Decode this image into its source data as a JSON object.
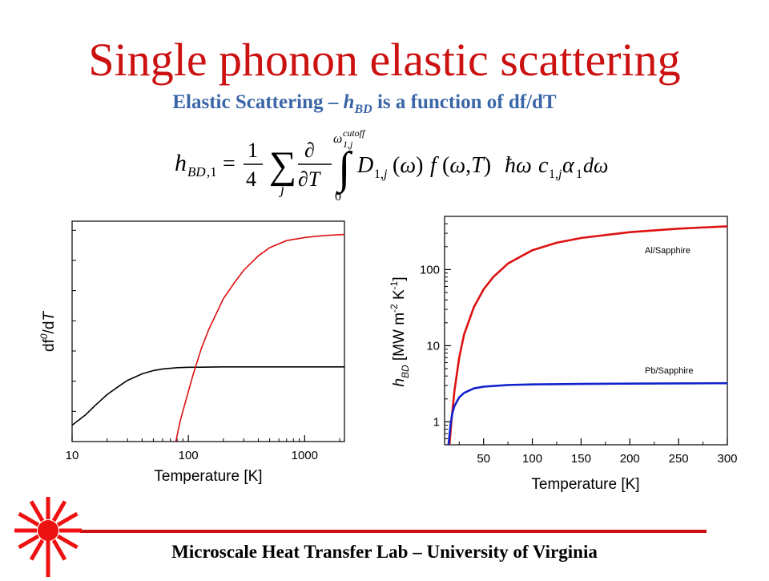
{
  "slide": {
    "title": "Single phonon elastic scattering",
    "subtitle_prefix": "Elastic Scattering – ",
    "subtitle_symbol": "h",
    "subtitle_symbol_sub": "BD",
    "subtitle_suffix": " is a function of df/dT",
    "footer": "Microscale Heat Transfer Lab – University of Virginia",
    "equation_latex": "h_{BD,1} = \\frac{1}{4} \\sum_j \\frac{\\partial}{\\partial T} \\int_0^{\\omega_{1,j}^{cutoff}} D_{1,j}(\\omega) f(\\omega,T) \\hbar\\omega c_{1,j} \\alpha_1 d\\omega"
  },
  "colors": {
    "title": "#cc1111",
    "subtitle": "#3a66a8",
    "red_series": "#dd1111",
    "blue_series": "#1122cc",
    "black_series": "#000000",
    "footer_rule": "#cc1111",
    "logo": "#ee1111"
  },
  "logo_icon": "laser-starburst-icon",
  "chart_data": [
    {
      "type": "line",
      "xlabel": "Temperature [K]",
      "ylabel": "df0/dT",
      "ylabel_parts": {
        "main": "df",
        "sup": "0",
        "rest": "/d",
        "var": "T"
      },
      "x_scale": "log",
      "xlim": [
        10,
        2200
      ],
      "x_ticks": [
        "10",
        "100",
        "1000"
      ],
      "y_tick_labels": "none",
      "grid": false,
      "legend": "none",
      "series": [
        {
          "color": "#000000",
          "x": [
            10,
            13,
            16,
            20,
            25,
            30,
            40,
            50,
            60,
            80,
            100,
            150,
            200,
            400,
            1000,
            2200
          ],
          "y": [
            0.08,
            0.13,
            0.18,
            0.23,
            0.27,
            0.3,
            0.332,
            0.348,
            0.356,
            0.362,
            0.364,
            0.365,
            0.366,
            0.366,
            0.366,
            0.366
          ]
        },
        {
          "color": "#dd1111",
          "x": [
            78,
            85,
            95,
            110,
            130,
            150,
            200,
            250,
            300,
            400,
            500,
            700,
            1000,
            1500,
            2200
          ],
          "y": [
            0.0,
            0.1,
            0.2,
            0.33,
            0.46,
            0.55,
            0.7,
            0.78,
            0.84,
            0.91,
            0.95,
            0.985,
            1.0,
            1.01,
            1.015
          ]
        }
      ]
    },
    {
      "type": "line",
      "xlabel": "Temperature [K]",
      "ylabel": "hBD [MW m-2 K-1]",
      "ylabel_parts": {
        "h": "h",
        "h_sub": "BD",
        "units_a": " [MW m",
        "exp1": "-2",
        "units_b": " K",
        "exp2": "-1",
        "units_c": "]"
      },
      "x_scale": "linear",
      "xlim": [
        10,
        300
      ],
      "x_ticks": [
        50,
        100,
        150,
        200,
        250,
        300
      ],
      "y_scale": "log",
      "ylim": [
        0.5,
        500
      ],
      "y_ticks": [
        "1",
        "10",
        "100"
      ],
      "grid": false,
      "annotations": [
        "Al/Sapphire",
        "Pb/Sapphire"
      ],
      "series": [
        {
          "name": "Al/Sapphire",
          "color": "#dd1111",
          "x": [
            15,
            17,
            20,
            25,
            30,
            40,
            50,
            60,
            75,
            100,
            125,
            150,
            200,
            250,
            300
          ],
          "y": [
            0.5,
            1.0,
            2.5,
            7,
            14,
            32,
            55,
            80,
            120,
            180,
            225,
            260,
            310,
            345,
            370
          ]
        },
        {
          "name": "Pb/Sapphire",
          "color": "#1122cc",
          "x": [
            14,
            16,
            18,
            20,
            25,
            30,
            40,
            50,
            75,
            100,
            150,
            200,
            250,
            300
          ],
          "y": [
            0.5,
            0.9,
            1.3,
            1.6,
            2.1,
            2.4,
            2.75,
            2.9,
            3.05,
            3.1,
            3.15,
            3.18,
            3.2,
            3.22
          ]
        }
      ]
    }
  ]
}
